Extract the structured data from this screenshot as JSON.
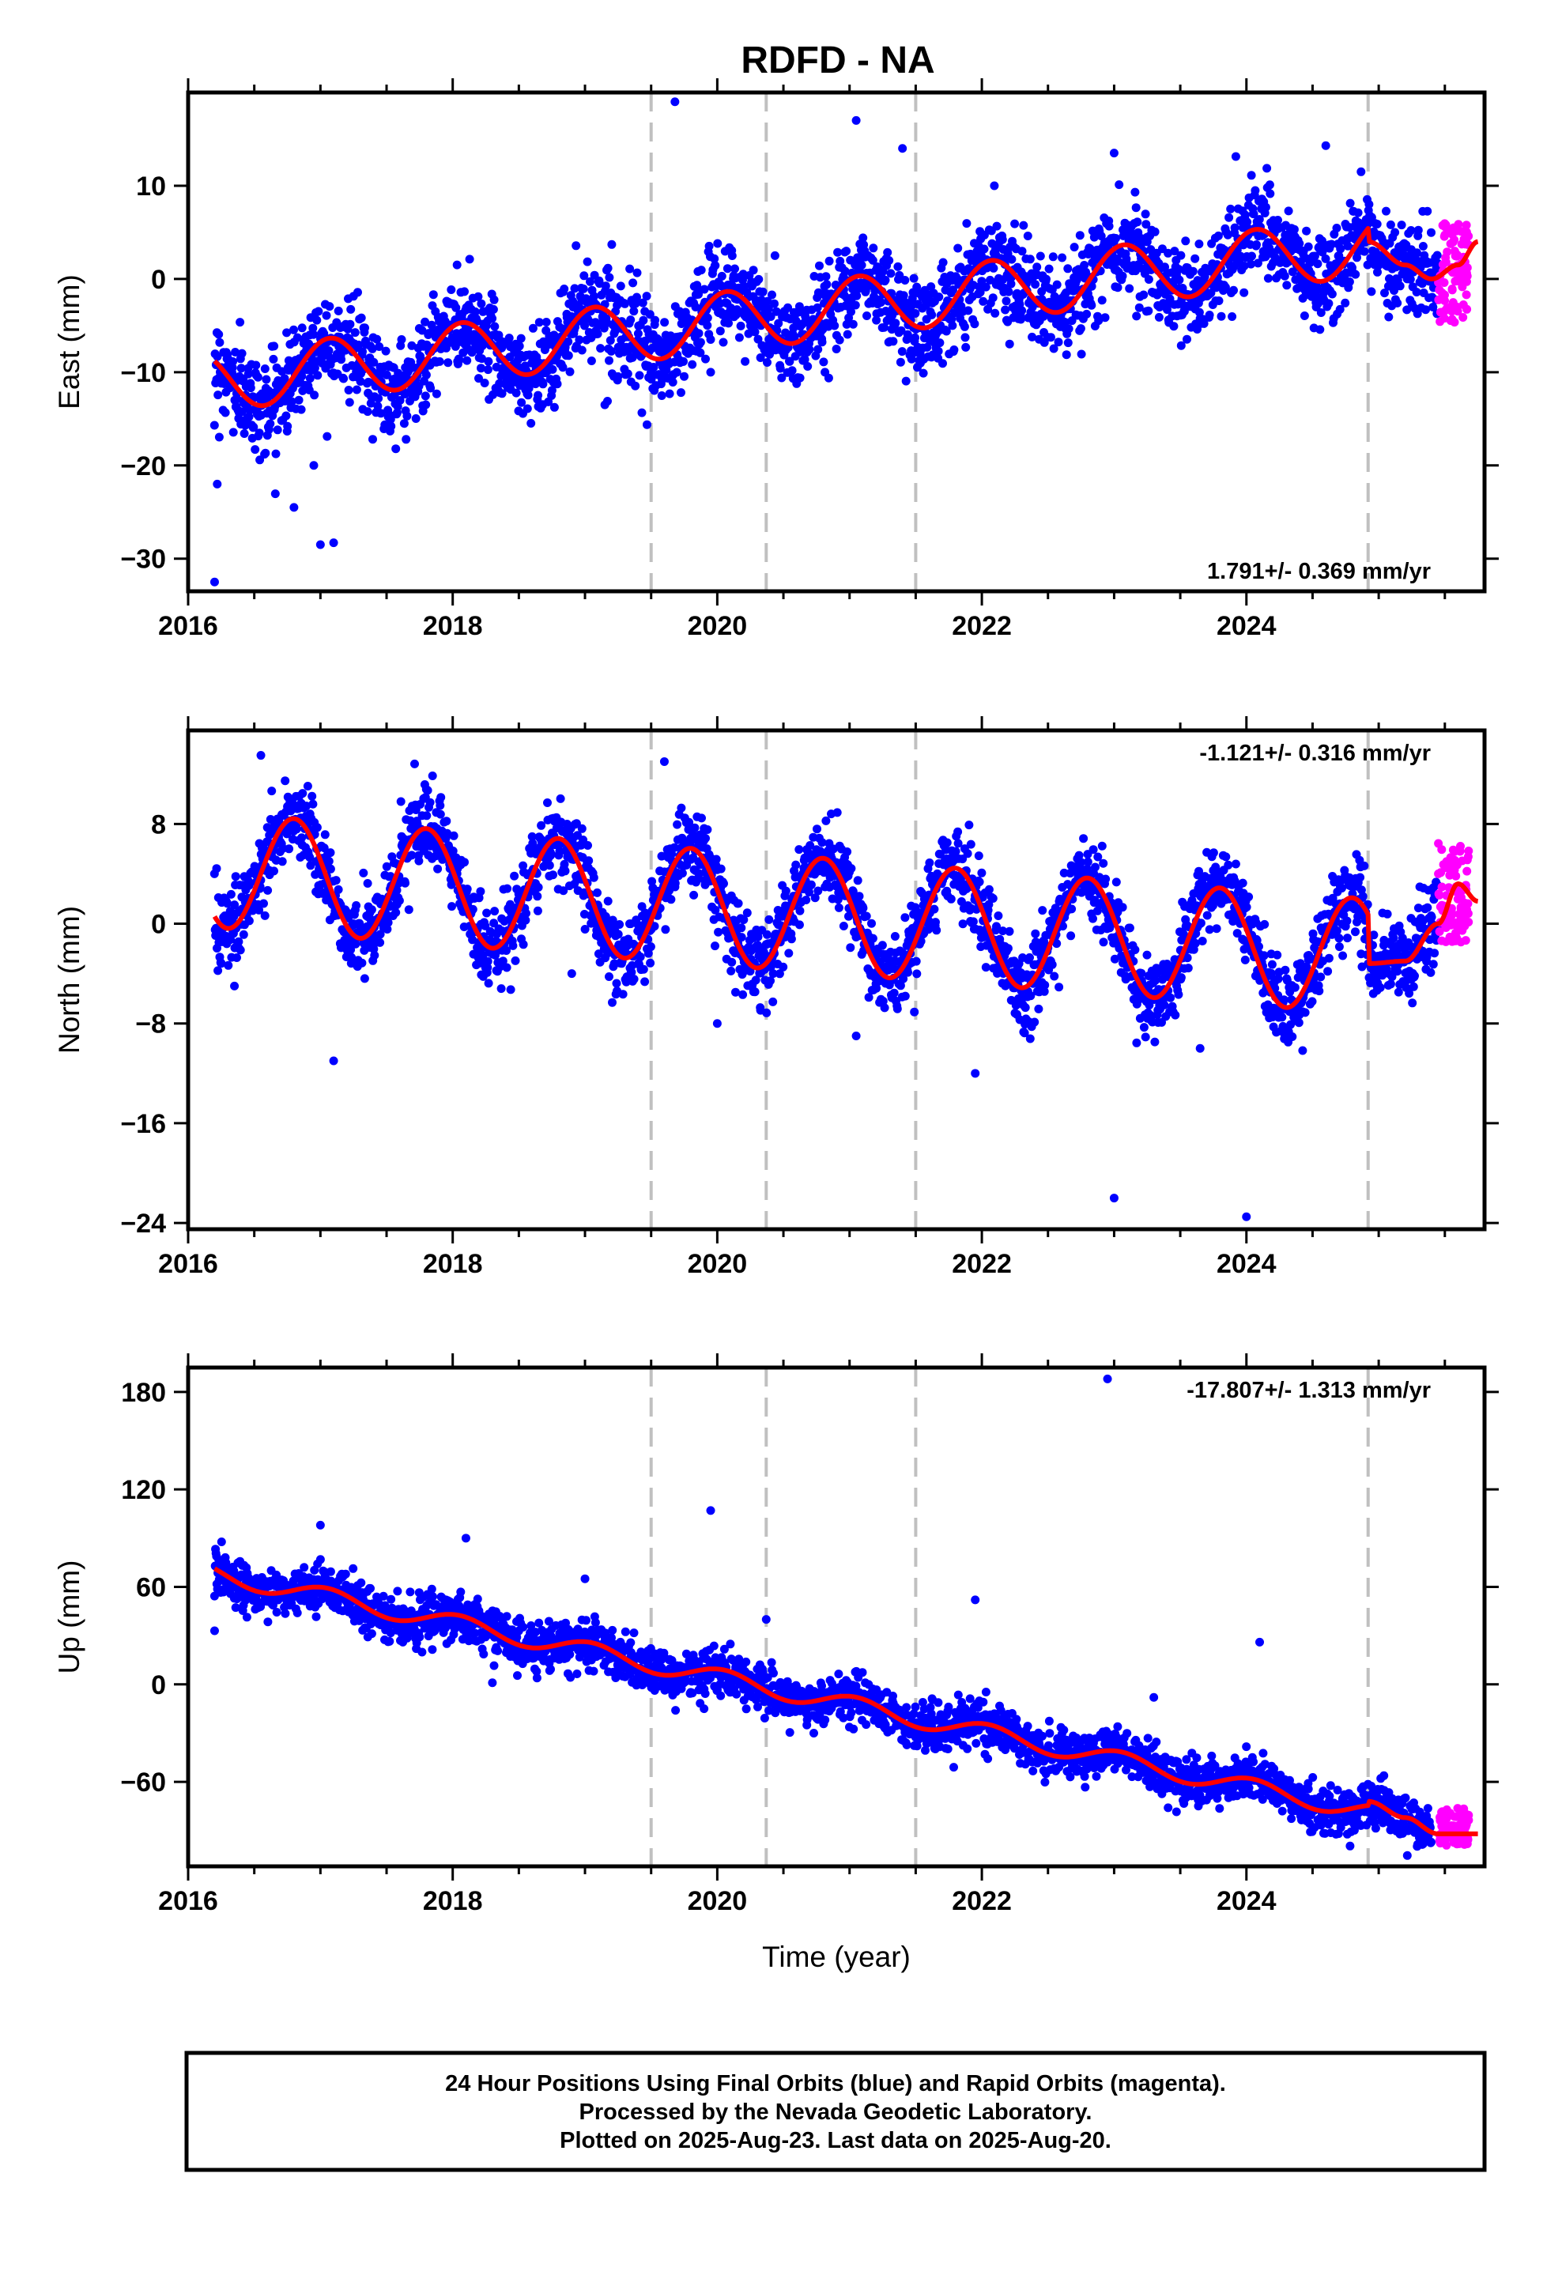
{
  "title": "RDFD - NA",
  "xlabel": "Time (year)",
  "footer": {
    "line1": "24 Hour Positions Using Final Orbits (blue) and Rapid Orbits (magenta).",
    "line2": "Processed by the Nevada Geodetic Laboratory.",
    "line3": "Plotted on 2025-Aug-23. Last data on 2025-Aug-20."
  },
  "colors": {
    "final": "#0000ff",
    "rapid": "#ff00ff",
    "model": "#ff0000",
    "step_line": "#c0c0c0"
  },
  "chart_data": [
    {
      "type": "scatter",
      "component": "East",
      "ylabel": "East (mm)",
      "rate_label": "1.791+/- 0.369 mm/yr",
      "xlim": [
        2016,
        2025.8
      ],
      "ylim": [
        -33.5,
        20
      ],
      "xticks": [
        2016,
        2018,
        2020,
        2022,
        2024
      ],
      "yticks": [
        10,
        0,
        -10,
        -20,
        -30
      ],
      "yticklabels": [
        "10",
        "0",
        "−10",
        "−20",
        "−30"
      ],
      "steps": [
        2019.5,
        2020.37,
        2021.5,
        2024.92
      ],
      "model": {
        "trend_start": [
          2016.2,
          -11
        ],
        "trend_end": [
          2024.9,
          3.5
        ],
        "annual_amplitude": 3.2,
        "annual_phase": 0.82,
        "post_step": [
          [
            2024.92,
            4
          ],
          [
            2025.2,
            1.5
          ],
          [
            2025.4,
            0
          ],
          [
            2025.6,
            1.5
          ],
          [
            2025.75,
            4
          ]
        ]
      },
      "final_range": [
        2016.2,
        2025.45
      ],
      "rapid_range": [
        2025.45,
        2025.68
      ],
      "rapid_center": 0.5,
      "rapid_spread": 5.5,
      "scatter_sigma": 2.5,
      "outliers": [
        [
          2016.2,
          -32.5
        ],
        [
          2016.22,
          -22
        ],
        [
          2016.8,
          -24.5
        ],
        [
          2017.0,
          -28.5
        ],
        [
          2017.1,
          -28.3
        ],
        [
          2016.95,
          -20
        ],
        [
          2019.68,
          19
        ],
        [
          2021.05,
          17
        ],
        [
          2021.4,
          14
        ],
        [
          2019.15,
          -13.5
        ],
        [
          2019.95,
          -10
        ],
        [
          2023.0,
          13.5
        ],
        [
          2024.6,
          14.3
        ]
      ]
    },
    {
      "type": "scatter",
      "component": "North",
      "ylabel": "North (mm)",
      "rate_label": "-1.121+/- 0.316 mm/yr",
      "xlim": [
        2016,
        2025.8
      ],
      "ylim": [
        -24.5,
        15.5
      ],
      "xticks": [
        2016,
        2018,
        2020,
        2022,
        2024
      ],
      "yticks": [
        8,
        0,
        -8,
        -16,
        -24
      ],
      "yticklabels": [
        "8",
        "0",
        "−8",
        "−16",
        "−24"
      ],
      "steps": [
        2019.5,
        2020.37,
        2021.5,
        2024.92
      ],
      "model": {
        "trend_start": [
          2016.2,
          4.3
        ],
        "trend_end": [
          2024.9,
          -2.6
        ],
        "annual_amplitude": 4.6,
        "annual_phase": 0.55,
        "post_step": [
          [
            2024.92,
            -3.2
          ],
          [
            2025.2,
            -3.0
          ],
          [
            2025.45,
            0
          ],
          [
            2025.6,
            3.2
          ],
          [
            2025.75,
            1.8
          ]
        ]
      },
      "final_range": [
        2016.2,
        2025.45
      ],
      "rapid_range": [
        2025.45,
        2025.68
      ],
      "rapid_center": 2.5,
      "rapid_spread": 4.0,
      "scatter_sigma": 1.6,
      "outliers": [
        [
          2016.55,
          13.5
        ],
        [
          2019.6,
          13
        ],
        [
          2016.35,
          -5
        ],
        [
          2017.1,
          -11
        ],
        [
          2020.0,
          -8
        ],
        [
          2021.05,
          -9
        ],
        [
          2021.95,
          -12
        ],
        [
          2023.0,
          -22
        ],
        [
          2024.0,
          -23.5
        ],
        [
          2023.65,
          -10
        ],
        [
          2018.9,
          -4
        ]
      ]
    },
    {
      "type": "scatter",
      "component": "Up",
      "ylabel": "Up (mm)",
      "rate_label": "-17.807+/- 1.313 mm/yr",
      "xlim": [
        2016,
        2025.8
      ],
      "ylim": [
        -112,
        195
      ],
      "xticks": [
        2016,
        2018,
        2020,
        2022,
        2024
      ],
      "yticks": [
        180,
        120,
        60,
        0,
        -60
      ],
      "yticklabels": [
        "180",
        "120",
        "60",
        "0",
        "−60"
      ],
      "steps": [
        2019.5,
        2020.37,
        2021.5,
        2024.92
      ],
      "model": {
        "trend_start": [
          2016.2,
          68
        ],
        "trend_end": [
          2024.9,
          -78
        ],
        "annual_amplitude": 5.5,
        "annual_phase": 0.8,
        "post_step": [
          [
            2024.92,
            -72
          ],
          [
            2025.2,
            -82
          ],
          [
            2025.45,
            -92
          ],
          [
            2025.75,
            -92
          ]
        ]
      },
      "final_range": [
        2016.2,
        2025.4
      ],
      "rapid_range": [
        2025.45,
        2025.68
      ],
      "rapid_center": -88,
      "rapid_spread": 12,
      "scatter_sigma": 7,
      "outliers": [
        [
          2022.95,
          188
        ],
        [
          2019.95,
          107
        ],
        [
          2016.2,
          33
        ],
        [
          2017.0,
          98
        ],
        [
          2018.1,
          90
        ],
        [
          2019.0,
          65
        ],
        [
          2020.37,
          40
        ],
        [
          2021.95,
          52
        ],
        [
          2024.1,
          26
        ],
        [
          2023.3,
          -8
        ],
        [
          2018.3,
          1
        ],
        [
          2019.9,
          -15
        ]
      ]
    }
  ]
}
